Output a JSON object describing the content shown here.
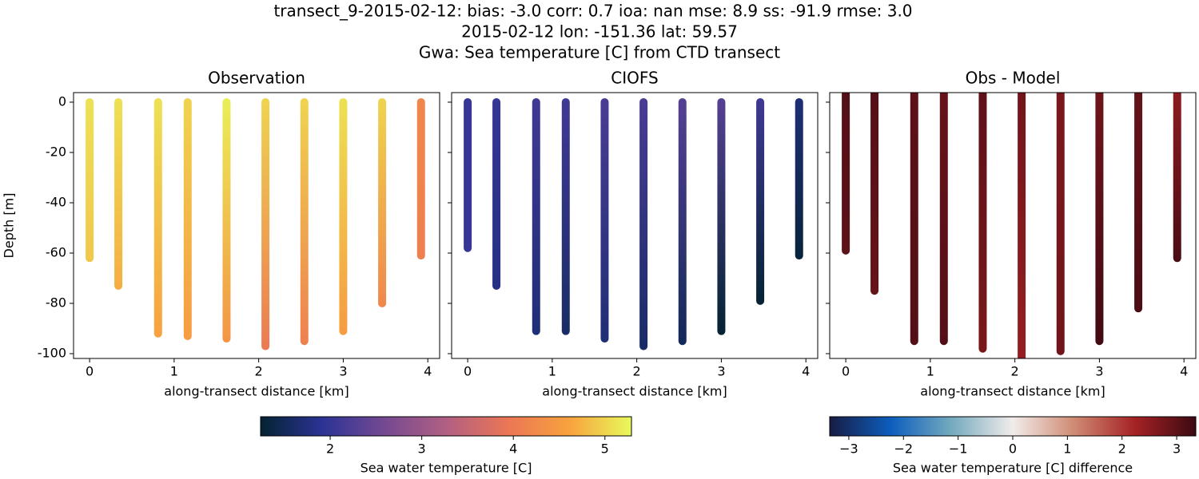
{
  "title": [
    "transect_9-2015-02-12: bias: -3.0  corr: 0.7  ioa: nan  mse: 8.9  ss: -91.9  rmse: 3.0",
    "2015-02-12 lon: -151.36 lat: 59.57",
    "Gwa: Sea temperature [C] from CTD transect"
  ],
  "chart_data": [
    {
      "type": "scatter",
      "title": "Observation",
      "xlabel": "along-transect distance [km]",
      "ylabel": "Depth [m]",
      "colorbar": 0,
      "xlim": [
        -0.19,
        4.14
      ],
      "ylim": [
        -101.9,
        3.8
      ],
      "xticks": [
        0,
        1,
        2,
        3,
        4
      ],
      "yticks": [
        0,
        -20,
        -40,
        -60,
        -80,
        -100
      ],
      "casts": [
        {
          "x": 0,
          "depths": [
            0,
            -62
          ],
          "temps": [
            5.1,
            4.9
          ]
        },
        {
          "x": 0.34,
          "depths": [
            0,
            -73
          ],
          "temps": [
            5.1,
            4.7
          ]
        },
        {
          "x": 0.81,
          "depths": [
            0,
            -92
          ],
          "temps": [
            5.1,
            4.6
          ]
        },
        {
          "x": 1.16,
          "depths": [
            0,
            -93
          ],
          "temps": [
            5.0,
            4.5
          ]
        },
        {
          "x": 1.62,
          "depths": [
            0,
            -94
          ],
          "temps": [
            5.2,
            4.4
          ]
        },
        {
          "x": 2.08,
          "depths": [
            0,
            -97
          ],
          "temps": [
            5.0,
            4.0
          ]
        },
        {
          "x": 2.54,
          "depths": [
            0,
            -95
          ],
          "temps": [
            5.0,
            4.1
          ]
        },
        {
          "x": 3.0,
          "depths": [
            0,
            -91
          ],
          "temps": [
            5.1,
            4.5
          ]
        },
        {
          "x": 3.46,
          "depths": [
            0,
            -80
          ],
          "temps": [
            5.0,
            4.2
          ]
        },
        {
          "x": 3.92,
          "depths": [
            0,
            -61
          ],
          "temps": [
            4.2,
            4.1
          ]
        }
      ]
    },
    {
      "type": "scatter",
      "title": "CIOFS",
      "xlabel": "along-transect distance [km]",
      "colorbar": 0,
      "xlim": [
        -0.19,
        4.14
      ],
      "ylim": [
        -101.9,
        3.8
      ],
      "xticks": [
        0,
        1,
        2,
        3,
        4
      ],
      "casts": [
        {
          "x": 0,
          "depths": [
            0,
            -58
          ],
          "temps": [
            2.0,
            2.0
          ]
        },
        {
          "x": 0.34,
          "depths": [
            0,
            -73
          ],
          "temps": [
            2.0,
            1.8
          ]
        },
        {
          "x": 0.81,
          "depths": [
            0,
            -91
          ],
          "temps": [
            2.1,
            1.7
          ]
        },
        {
          "x": 1.16,
          "depths": [
            0,
            -91
          ],
          "temps": [
            2.1,
            1.6
          ]
        },
        {
          "x": 1.62,
          "depths": [
            0,
            -94
          ],
          "temps": [
            2.2,
            1.7
          ]
        },
        {
          "x": 2.08,
          "depths": [
            0,
            -97
          ],
          "temps": [
            2.2,
            1.6
          ]
        },
        {
          "x": 2.54,
          "depths": [
            0,
            -95
          ],
          "temps": [
            2.3,
            1.5
          ]
        },
        {
          "x": 3.0,
          "depths": [
            0,
            -91
          ],
          "temps": [
            2.3,
            1.2
          ]
        },
        {
          "x": 3.46,
          "depths": [
            0,
            -79
          ],
          "temps": [
            2.1,
            1.2
          ]
        },
        {
          "x": 3.92,
          "depths": [
            0,
            -61
          ],
          "temps": [
            1.7,
            1.3
          ]
        }
      ]
    },
    {
      "type": "scatter",
      "title": "Obs - Model",
      "xlabel": "along-transect distance [km]",
      "colorbar": 1,
      "xlim": [
        -0.19,
        4.14
      ],
      "ylim": [
        -101.9,
        3.8
      ],
      "xticks": [
        0,
        1,
        2,
        3,
        4
      ],
      "casts": [
        {
          "x": 0,
          "depths": [
            3.8,
            -59
          ],
          "temps": [
            3.1,
            3.0
          ]
        },
        {
          "x": 0.34,
          "depths": [
            3.8,
            -75
          ],
          "temps": [
            3.1,
            2.9
          ]
        },
        {
          "x": 0.81,
          "depths": [
            3.8,
            -95
          ],
          "temps": [
            3.0,
            3.1
          ]
        },
        {
          "x": 1.16,
          "depths": [
            3.8,
            -95
          ],
          "temps": [
            2.9,
            3.1
          ]
        },
        {
          "x": 1.62,
          "depths": [
            3.8,
            -98
          ],
          "temps": [
            3.0,
            2.7
          ]
        },
        {
          "x": 2.08,
          "depths": [
            3.8,
            -102
          ],
          "temps": [
            2.8,
            2.4
          ]
        },
        {
          "x": 2.54,
          "depths": [
            3.8,
            -99
          ],
          "temps": [
            2.7,
            2.8
          ]
        },
        {
          "x": 3.0,
          "depths": [
            3.8,
            -95
          ],
          "temps": [
            2.8,
            3.3
          ]
        },
        {
          "x": 3.46,
          "depths": [
            3.8,
            -82
          ],
          "temps": [
            2.9,
            3.2
          ]
        },
        {
          "x": 3.92,
          "depths": [
            3.8,
            -62
          ],
          "temps": [
            2.5,
            3.2
          ]
        }
      ]
    }
  ],
  "colorbars": [
    {
      "label": "Sea water temperature [C]",
      "lim": [
        1.24,
        5.29
      ],
      "ticks": [
        2,
        3,
        4,
        5
      ],
      "colors": [
        "#042333",
        "#2c3395",
        "#744992",
        "#b15f82",
        "#eb7655",
        "#f8a23e",
        "#e8fa5b"
      ]
    },
    {
      "label": "Sea water temperature [C] difference",
      "lim": [
        -3.35,
        3.35
      ],
      "ticks": [
        {
          "value": -3,
          "label": "−3"
        },
        {
          "value": -2,
          "label": "−2"
        },
        {
          "value": -1,
          "label": "−1"
        },
        0,
        1,
        2,
        3
      ],
      "colors": [
        "#181c43",
        "#0c5ebe",
        "#75aabe",
        "#f1eceb",
        "#d08b73",
        "#a52224",
        "#3c0912"
      ]
    }
  ]
}
